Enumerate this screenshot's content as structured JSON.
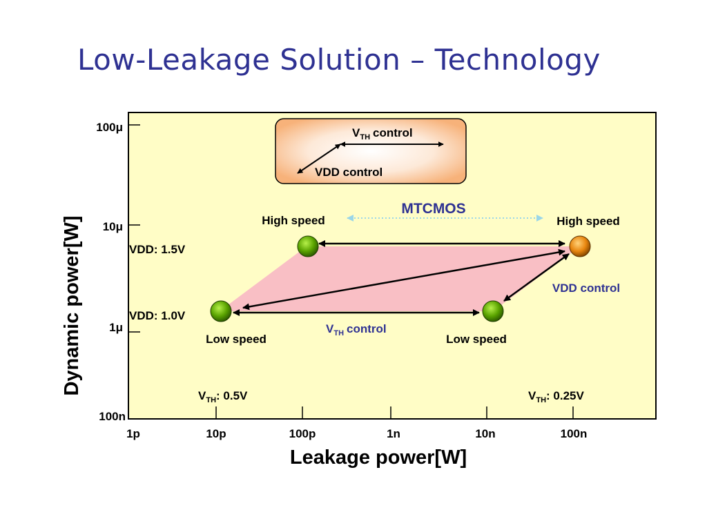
{
  "title": "Low-Leakage Solution – Technology",
  "colors": {
    "title": "#2e3192",
    "plot_background": "#fffdc6",
    "region": "#f9bfc5",
    "green_dot": "#5aa300",
    "orange_dot": "#e8860f",
    "mtcmos_arrow": "#9ad6e8",
    "accent_text": "#2e3192"
  },
  "chart_data": {
    "type": "diagram-plot",
    "xlabel": "Leakage power[W]",
    "ylabel": "Dynamic power[W]",
    "x_ticks": [
      "1p",
      "10p",
      "100p",
      "1n",
      "10n",
      "100n"
    ],
    "y_ticks": [
      "100μ",
      "10μ",
      "1μ",
      "100n"
    ],
    "x_scale": "log",
    "y_scale": "log",
    "legend": {
      "vth_control": "control",
      "vth_sym": "V",
      "vth_sub": "TH",
      "vdd_control": "VDD control"
    },
    "labels": {
      "mtcmos": "MTCMOS",
      "high_speed_left": "High speed",
      "high_speed_right": "High speed",
      "low_speed_left": "Low speed",
      "low_speed_right": "Low speed",
      "vdd_high": "VDD: 1.5V",
      "vdd_low": "VDD: 1.0V",
      "vdd_control": "VDD control",
      "vth_control_text": "control",
      "vth_left": ": 0.5V",
      "vth_right": ": 0.25V",
      "vth_sym": "V",
      "vth_sub": "TH"
    },
    "points": [
      {
        "name": "High speed (V_TH 0.5V)",
        "x": 1.1e-10,
        "y": 7e-06,
        "vdd": "1.5V",
        "vth": "0.5V",
        "color": "green"
      },
      {
        "name": "High speed (V_TH 0.25V)",
        "x": 1.1e-07,
        "y": 7e-06,
        "vdd": "1.5V",
        "vth": "0.25V",
        "color": "orange"
      },
      {
        "name": "Low speed (V_TH 0.5V)",
        "x": 1.1e-11,
        "y": 1.2e-06,
        "vdd": "1.0V",
        "vth": "0.5V",
        "color": "green"
      },
      {
        "name": "Low speed (V_TH 0.25V)",
        "x": 1.1e-08,
        "y": 1.2e-06,
        "vdd": "1.0V",
        "vth": "0.25V",
        "color": "green"
      }
    ]
  }
}
